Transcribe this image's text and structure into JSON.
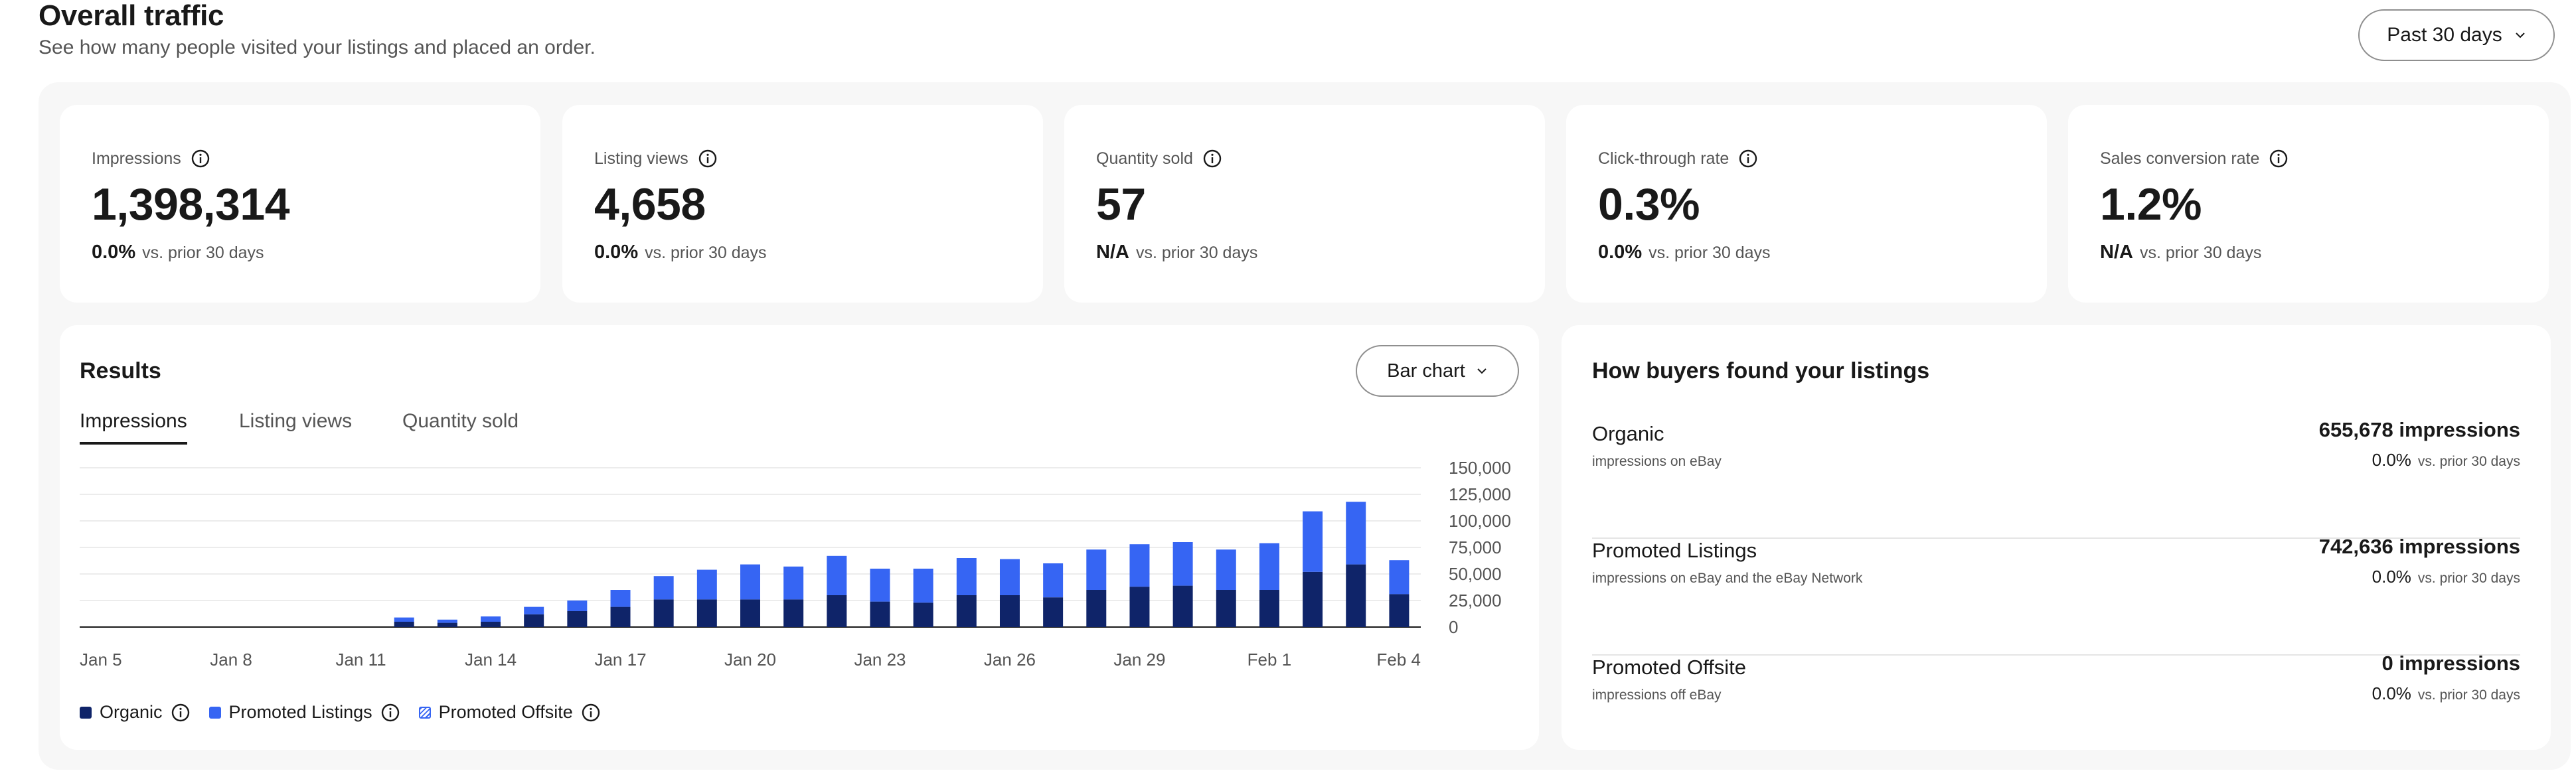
{
  "header": {
    "title": "Overall traffic",
    "subtitle": "See how many people visited your listings and placed an order.",
    "period_label": "Past 30 days"
  },
  "kpis": [
    {
      "label": "Impressions",
      "value": "1,398,314",
      "change": "0.0%",
      "change_suffix": "vs. prior 30 days"
    },
    {
      "label": "Listing views",
      "value": "4,658",
      "change": "0.0%",
      "change_suffix": "vs. prior 30 days"
    },
    {
      "label": "Quantity sold",
      "value": "57",
      "change": "N/A",
      "change_suffix": "vs. prior 30 days"
    },
    {
      "label": "Click-through rate",
      "value": "0.3%",
      "change": "0.0%",
      "change_suffix": "vs. prior 30 days"
    },
    {
      "label": "Sales conversion rate",
      "value": "1.2%",
      "change": "N/A",
      "change_suffix": "vs. prior 30 days"
    }
  ],
  "results": {
    "title": "Results",
    "chart_type_label": "Bar chart",
    "tabs": [
      {
        "label": "Impressions",
        "active": true
      },
      {
        "label": "Listing views",
        "active": false
      },
      {
        "label": "Quantity sold",
        "active": false
      }
    ],
    "legend": [
      {
        "label": "Organic",
        "color": "#0f2469"
      },
      {
        "label": "Promoted Listings",
        "color": "#3665f3"
      },
      {
        "label": "Promoted Offsite",
        "color": "#3665f3"
      }
    ]
  },
  "chart_data": {
    "type": "bar",
    "stacked": true,
    "x_tick_labels": [
      "Jan 5",
      "Jan 8",
      "Jan 11",
      "Jan 14",
      "Jan 17",
      "Jan 20",
      "Jan 23",
      "Jan 26",
      "Jan 29",
      "Feb 1",
      "Feb 4"
    ],
    "categories": [
      "Jan 5",
      "Jan 6",
      "Jan 7",
      "Jan 8",
      "Jan 9",
      "Jan 10",
      "Jan 11",
      "Jan 12",
      "Jan 13",
      "Jan 14",
      "Jan 15",
      "Jan 16",
      "Jan 17",
      "Jan 18",
      "Jan 19",
      "Jan 20",
      "Jan 21",
      "Jan 22",
      "Jan 23",
      "Jan 24",
      "Jan 25",
      "Jan 26",
      "Jan 27",
      "Jan 28",
      "Jan 29",
      "Jan 30",
      "Jan 31",
      "Feb 1",
      "Feb 2",
      "Feb 3",
      "Feb 4"
    ],
    "series": [
      {
        "name": "Organic",
        "color": "#0f2469",
        "values": [
          0,
          0,
          0,
          0,
          0,
          0,
          0,
          5000,
          4000,
          5000,
          12000,
          15000,
          19000,
          26000,
          26000,
          26000,
          26000,
          30000,
          24000,
          23000,
          30000,
          30000,
          28000,
          35000,
          38000,
          39000,
          35000,
          35000,
          52000,
          59000,
          31000
        ]
      },
      {
        "name": "Promoted Listings",
        "color": "#3665f3",
        "values": [
          0,
          0,
          0,
          0,
          0,
          0,
          0,
          4000,
          3000,
          5000,
          7000,
          10000,
          16000,
          22000,
          28000,
          33000,
          31000,
          37000,
          31000,
          32000,
          35000,
          34000,
          32000,
          38000,
          40000,
          41000,
          38000,
          44000,
          57000,
          59000,
          32000
        ]
      },
      {
        "name": "Promoted Offsite",
        "color": "#3665f3",
        "values": [
          0,
          0,
          0,
          0,
          0,
          0,
          0,
          0,
          0,
          0,
          0,
          0,
          0,
          0,
          0,
          0,
          0,
          0,
          0,
          0,
          0,
          0,
          0,
          0,
          0,
          0,
          0,
          0,
          0,
          0,
          0
        ]
      }
    ],
    "y_ticks": [
      "150,000",
      "125,000",
      "100,000",
      "75,000",
      "50,000",
      "25,000",
      "0"
    ],
    "ylim": [
      0,
      150000
    ],
    "grid": true
  },
  "sources": {
    "title": "How buyers found your listings",
    "rows": [
      {
        "name": "Organic",
        "desc": "impressions on eBay",
        "value": "655,678 impressions",
        "change": "0.0%",
        "change_suffix": "vs. prior 30 days"
      },
      {
        "name": "Promoted Listings",
        "desc": "impressions on eBay and the eBay Network",
        "value": "742,636 impressions",
        "change": "0.0%",
        "change_suffix": "vs. prior 30 days"
      },
      {
        "name": "Promoted Offsite",
        "desc": "impressions off eBay",
        "value": "0 impressions",
        "change": "0.0%",
        "change_suffix": "vs. prior 30 days"
      }
    ]
  }
}
